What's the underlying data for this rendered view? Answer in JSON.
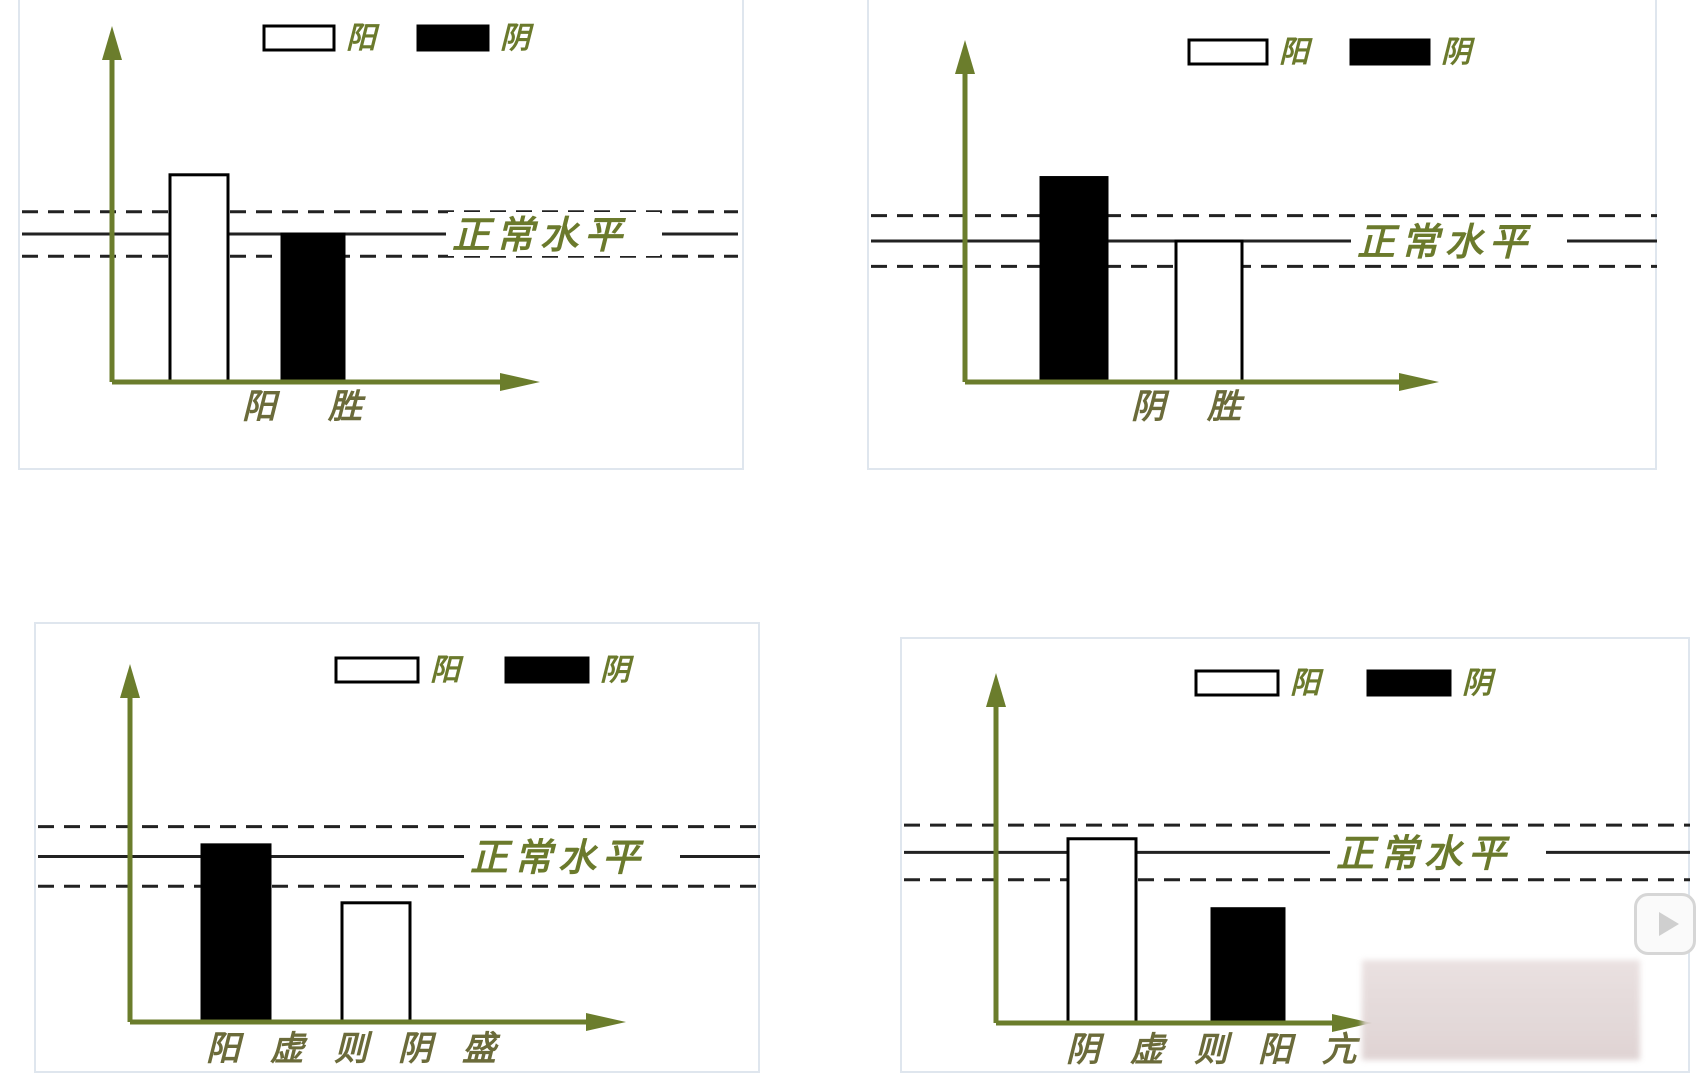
{
  "colors": {
    "axis": "#6b7d2c",
    "label": "#6b7a2c",
    "yang_fill": "#ffffff",
    "yin_fill": "#000000"
  },
  "chart_data": [
    {
      "type": "bar",
      "legend": [
        {
          "name": "阳",
          "fill": "#ffffff"
        },
        {
          "name": "阴",
          "fill": "#000000"
        }
      ],
      "reference_label": "正常水平",
      "reference_value": 1.0,
      "band": [
        0.85,
        1.15
      ],
      "categories": [
        "阳",
        "阴"
      ],
      "values": [
        1.4,
        1.0
      ],
      "xlabel": "阳 胜",
      "ylim": [
        0,
        2.0
      ]
    },
    {
      "type": "bar",
      "legend": [
        {
          "name": "阳",
          "fill": "#ffffff"
        },
        {
          "name": "阴",
          "fill": "#000000"
        }
      ],
      "reference_label": "正常水平",
      "reference_value": 1.0,
      "band": [
        0.82,
        1.18
      ],
      "categories": [
        "阴",
        "阳"
      ],
      "values": [
        1.45,
        1.0
      ],
      "xlabel": "阴 胜",
      "ylim": [
        0,
        2.0
      ]
    },
    {
      "type": "bar",
      "legend": [
        {
          "name": "阳",
          "fill": "#ffffff"
        },
        {
          "name": "阴",
          "fill": "#000000"
        }
      ],
      "reference_label": "正常水平",
      "reference_value": 1.0,
      "band": [
        0.82,
        1.18
      ],
      "categories": [
        "阴",
        "阳"
      ],
      "values": [
        1.07,
        0.72
      ],
      "xlabel": "阳虚则阴盛",
      "ylim": [
        0,
        1.8
      ]
    },
    {
      "type": "bar",
      "legend": [
        {
          "name": "阳",
          "fill": "#ffffff"
        },
        {
          "name": "阴",
          "fill": "#000000"
        }
      ],
      "reference_label": "正常水平",
      "reference_value": 1.0,
      "band": [
        0.84,
        1.16
      ],
      "categories": [
        "阳",
        "阴"
      ],
      "values": [
        1.08,
        0.67
      ],
      "xlabel": "阴虚则阳亢",
      "ylim": [
        0,
        1.7
      ]
    }
  ]
}
